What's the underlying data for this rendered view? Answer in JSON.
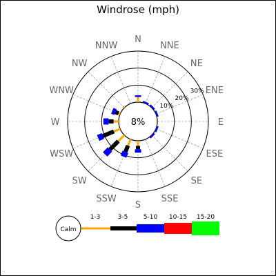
{
  "chart_data": {
    "type": "windrose",
    "title": "Windrose (mph)",
    "directions": [
      "N",
      "NNE",
      "NE",
      "ENE",
      "E",
      "ESE",
      "SE",
      "SSE",
      "S",
      "SSW",
      "SW",
      "WSW",
      "W",
      "WNW",
      "NW",
      "NNW"
    ],
    "range_labels": [
      "10%",
      "20%",
      "30%"
    ],
    "rmax": 30,
    "calm_label": "8%",
    "bins": [
      {
        "label": "1-3",
        "color": "#ffa500"
      },
      {
        "label": "3-5",
        "color": "#000000"
      },
      {
        "label": "5-10",
        "color": "#0000ff"
      },
      {
        "label": "10-15",
        "color": "#ff0000"
      },
      {
        "label": "15-20",
        "color": "#00ff00"
      }
    ],
    "calm_legend_label": "Calm",
    "frequencies": [
      [
        3,
        0,
        1,
        0,
        0
      ],
      [
        0,
        0,
        1,
        0,
        0
      ],
      [
        0,
        0,
        1,
        0,
        0
      ],
      [
        0,
        0,
        1,
        0,
        0
      ],
      [
        0,
        0,
        0,
        0,
        0
      ],
      [
        0,
        0,
        1,
        0,
        0
      ],
      [
        0,
        0,
        1,
        0,
        0
      ],
      [
        0,
        0,
        0,
        0,
        0
      ],
      [
        3,
        2,
        2,
        0,
        0
      ],
      [
        4,
        4,
        3,
        0,
        0
      ],
      [
        5,
        7,
        4,
        0,
        0
      ],
      [
        4,
        7,
        3,
        0,
        0
      ],
      [
        3,
        3,
        3,
        0,
        0
      ],
      [
        1,
        2,
        2,
        0,
        0
      ],
      [
        1,
        0,
        0,
        0,
        0
      ],
      [
        0,
        0,
        0,
        0,
        0
      ]
    ]
  }
}
